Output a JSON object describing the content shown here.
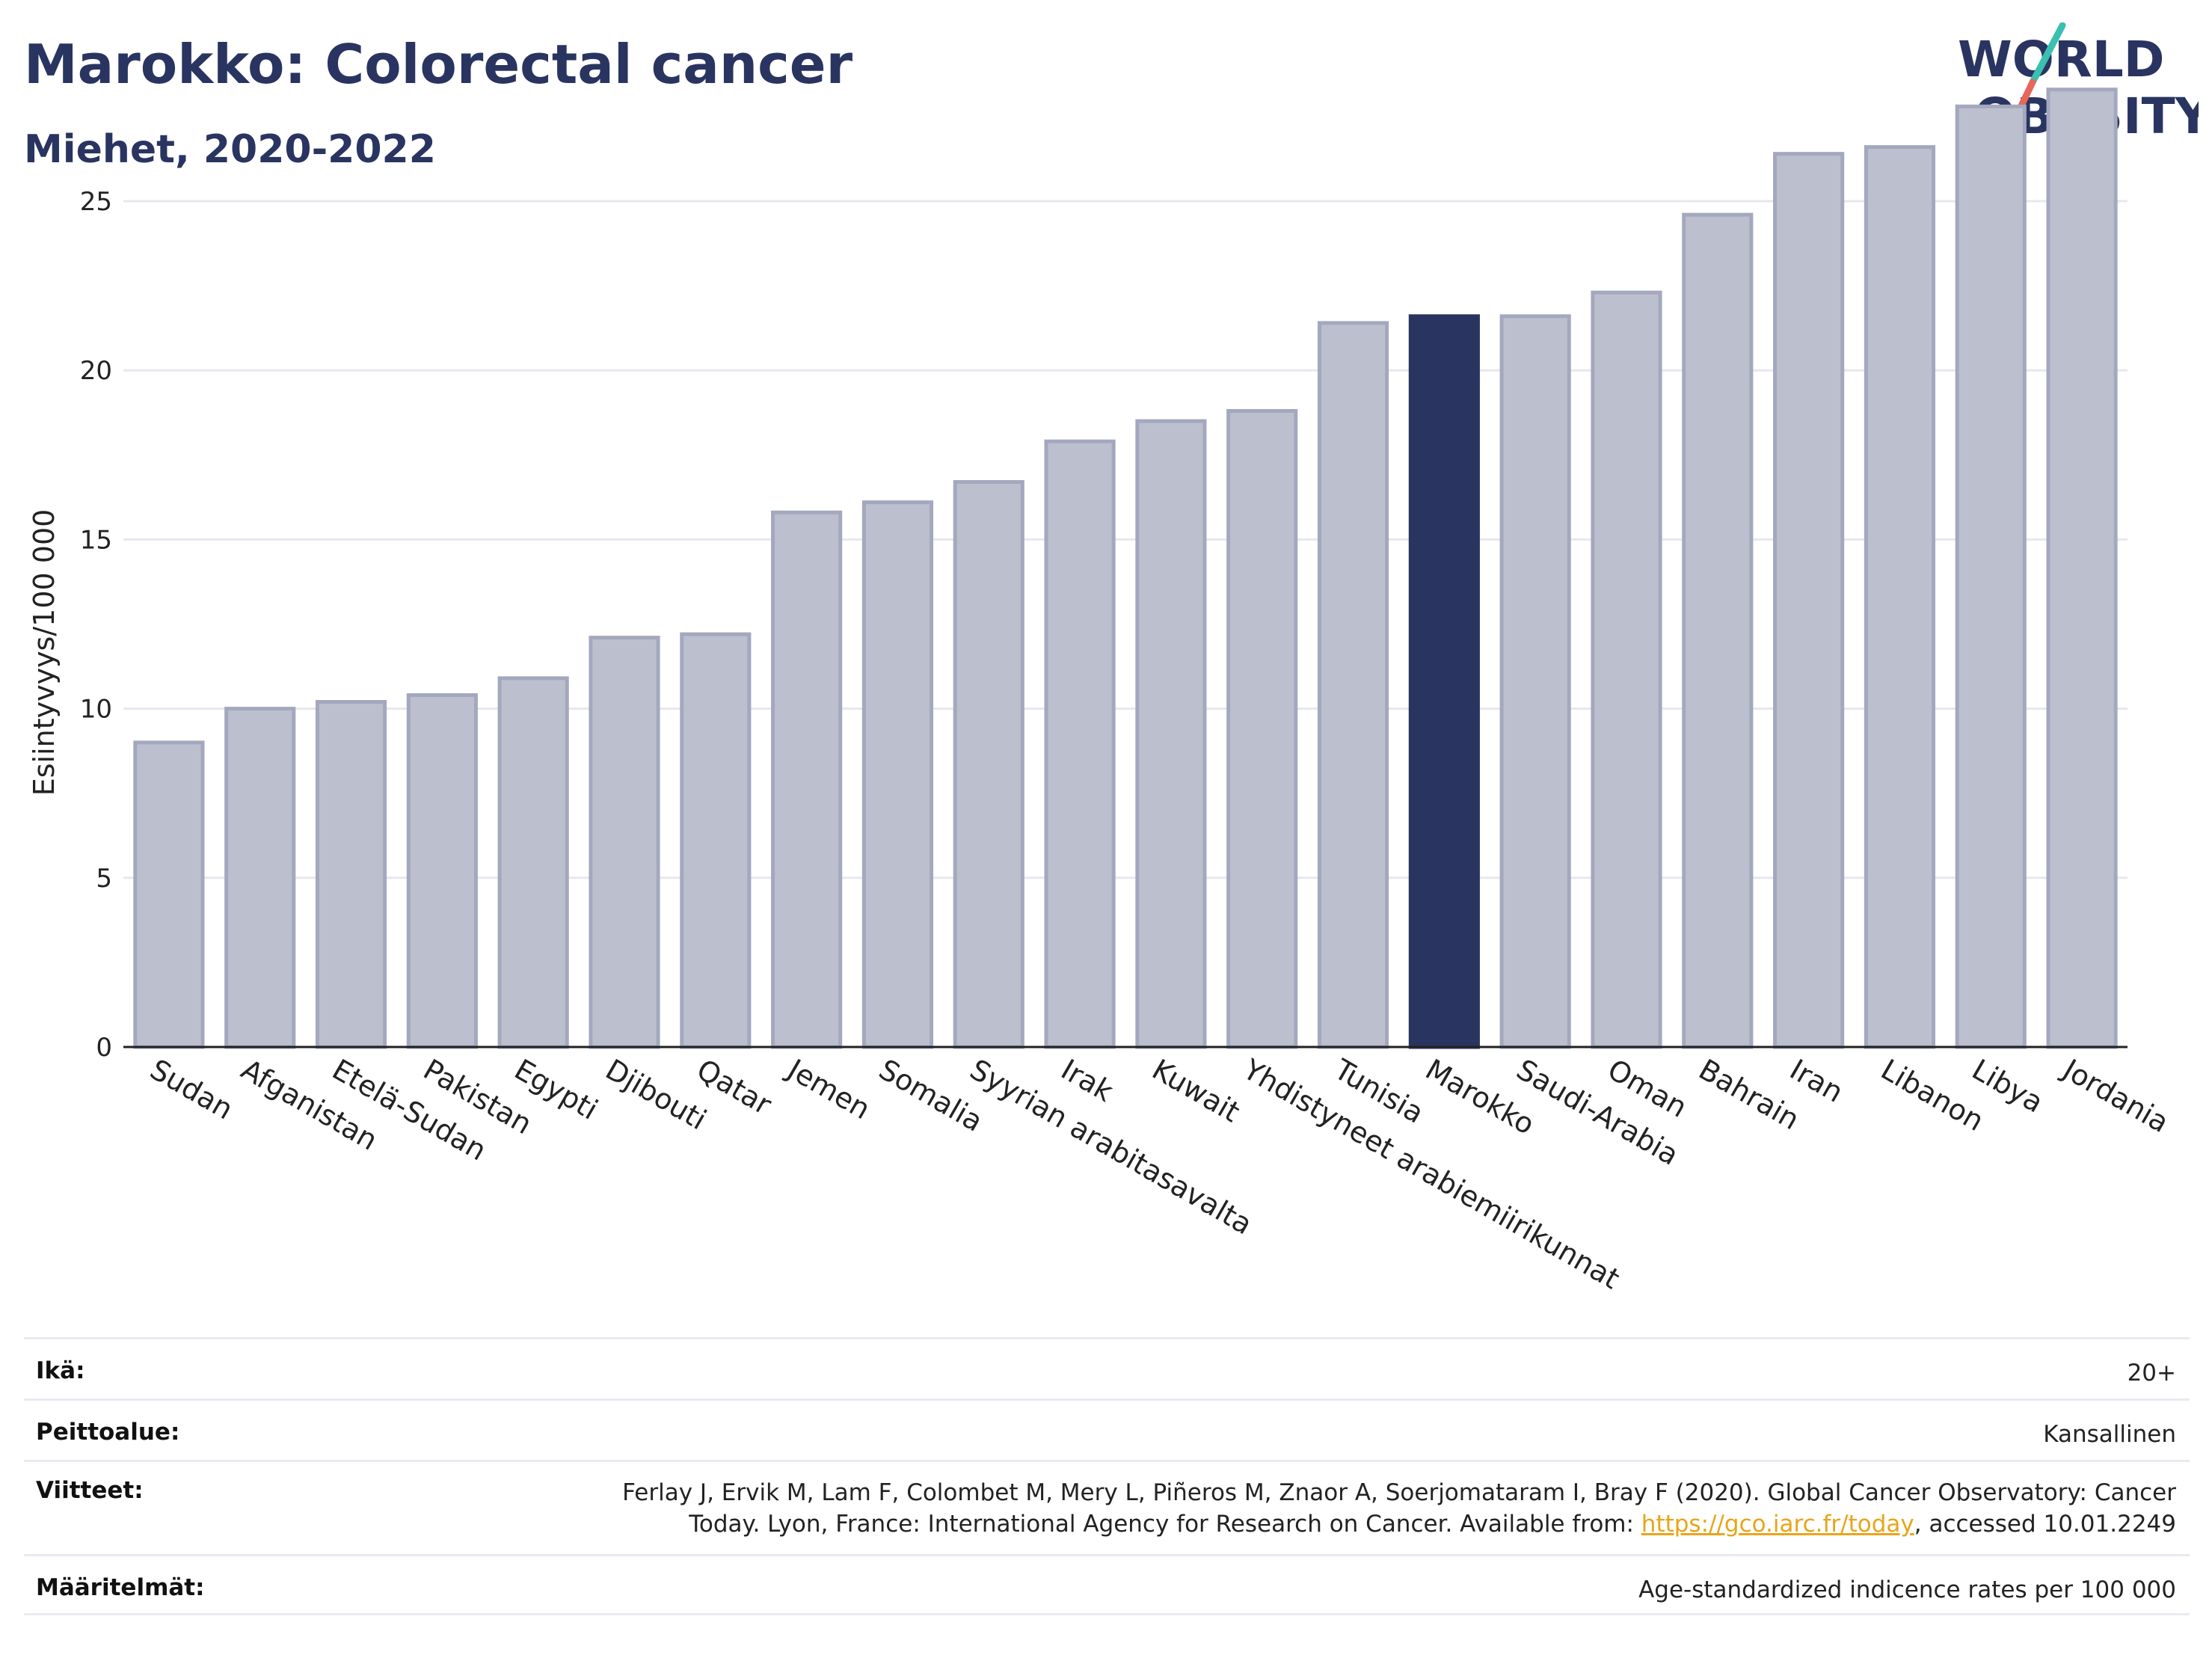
{
  "header": {
    "title": "Marokko: Colorectal cancer",
    "subtitle": "Miehet, 2020-2022"
  },
  "logo": {
    "line1": "WORLD",
    "line2": "OBESITY",
    "colors": {
      "text": "#2a3460",
      "slash_top": "#3bbfb0",
      "slash_bottom": "#e8665a"
    }
  },
  "chart_data": {
    "type": "bar",
    "ylabel": "Esiintyvyys/100 000",
    "ylim": [
      0,
      29
    ],
    "yticks": [
      0,
      5,
      10,
      15,
      20,
      25
    ],
    "grid": true,
    "highlight": "Marokko",
    "colors": {
      "bar": "#bcc0ce",
      "bar_edge": "#a3a8be",
      "highlight": "#2a3460",
      "grid": "#e6e8ee",
      "axis": "#222222"
    },
    "categories": [
      "Sudan",
      "Afganistan",
      "Etelä-Sudan",
      "Pakistan",
      "Egypti",
      "Djibouti",
      "Qatar",
      "Jemen",
      "Somalia",
      "Syyrian arabitasavalta",
      "Irak",
      "Kuwait",
      "Yhdistyneet arabiemiirikunnat",
      "Tunisia",
      "Marokko",
      "Saudi-Arabia",
      "Oman",
      "Bahrain",
      "Iran",
      "Libanon",
      "Libya",
      "Jordania"
    ],
    "values": [
      9.0,
      10.0,
      10.2,
      10.4,
      10.9,
      12.1,
      12.2,
      15.8,
      16.1,
      16.7,
      17.9,
      18.5,
      18.8,
      21.4,
      21.6,
      21.6,
      22.3,
      24.6,
      26.4,
      26.6,
      27.8,
      28.3
    ]
  },
  "meta": [
    {
      "label": "Ikä:",
      "value": "20+"
    },
    {
      "label": "Peittoalue:",
      "value": "Kansallinen"
    },
    {
      "label": "Viitteet:",
      "value_line1": "Ferlay J, Ervik M, Lam F, Colombet M, Mery L, Piñeros M, Znaor A, Soerjomataram I, Bray F (2020). Global Cancer Observatory: Cancer",
      "value_line2_pre": "Today. Lyon, France: International Agency for Research on Cancer. Available from: ",
      "link": "https://gco.iarc.fr/today",
      "value_line2_post": ", accessed 10.01.2249"
    },
    {
      "label": "Määritelmät:",
      "value": "Age-standardized indicence rates per 100 000"
    }
  ]
}
